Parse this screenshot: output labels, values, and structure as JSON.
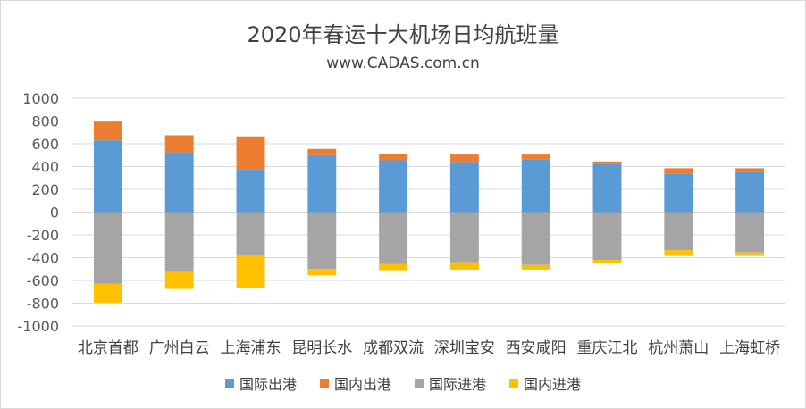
{
  "chart_data": {
    "type": "bar",
    "title": "2020年春运十大机场日均航班量",
    "subtitle": "www.CADAS.com.cn",
    "categories": [
      "北京首都",
      "广州白云",
      "上海浦东",
      "昆明长水",
      "成都双流",
      "深圳宝安",
      "西安咸阳",
      "重庆江北",
      "杭州萧山",
      "上海虹桥"
    ],
    "series": [
      {
        "name": "国际出港",
        "color": "#5B9BD5",
        "values": [
          630,
          525,
          375,
          500,
          455,
          440,
          465,
          420,
          335,
          355
        ]
      },
      {
        "name": "国内出港",
        "color": "#ED7D31",
        "values": [
          165,
          150,
          290,
          55,
          55,
          65,
          40,
          25,
          50,
          30
        ]
      },
      {
        "name": "国际进港",
        "color": "#A5A5A5",
        "values": [
          -630,
          -525,
          -375,
          -500,
          -455,
          -440,
          -465,
          -420,
          -335,
          -355
        ]
      },
      {
        "name": "国内进港",
        "color": "#FFC000",
        "values": [
          -165,
          -150,
          -290,
          -55,
          -55,
          -65,
          -40,
          -25,
          -50,
          -30
        ]
      }
    ],
    "y_ticks": [
      "1000",
      "800",
      "600",
      "400",
      "200",
      "0",
      "-200",
      "-400",
      "-600",
      "-800",
      "-1000"
    ],
    "ylim": [
      -1000,
      1000
    ],
    "stacked": true,
    "grid": true,
    "legend_position": "bottom"
  }
}
